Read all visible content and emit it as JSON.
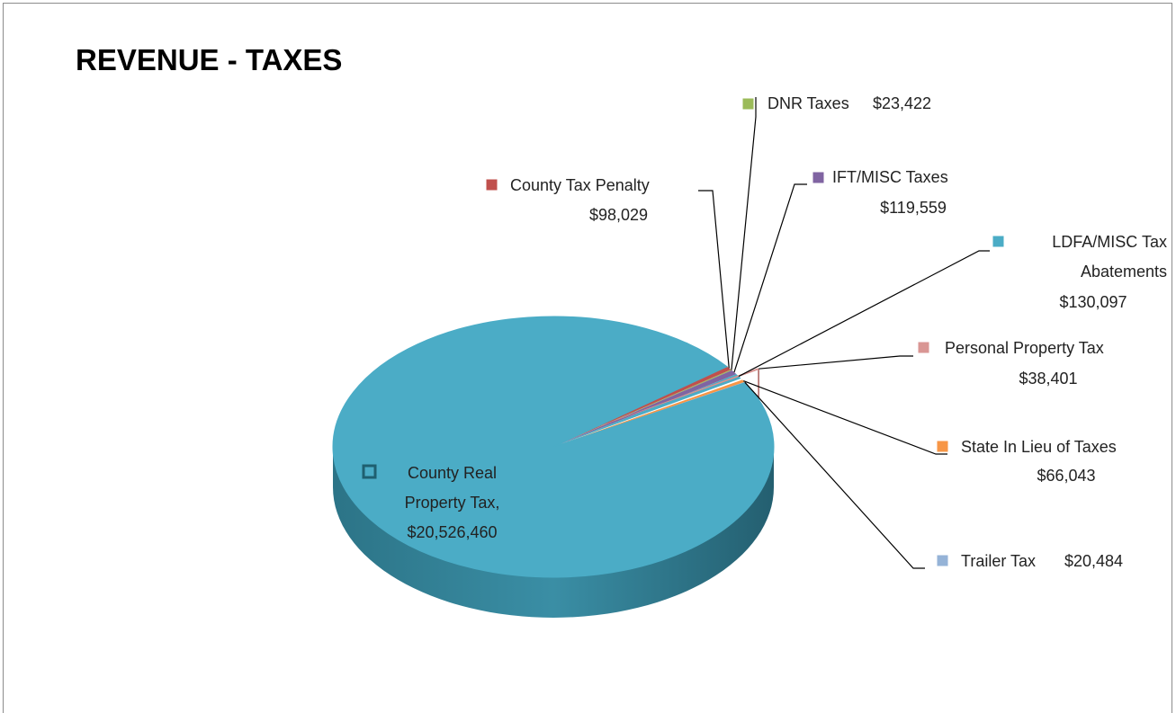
{
  "chart_data": {
    "type": "pie3d",
    "title": "REVENUE - TAXES",
    "categories": [
      "County Tax Penalty",
      "DNR Taxes",
      "IFT/MISC Taxes",
      "LDFA/MISC Tax Abatements",
      "Personal Property Tax",
      "State In Lieu of Taxes",
      "Trailer Tax",
      "County Real Property  Tax,"
    ],
    "values": [
      98029,
      23422,
      119559,
      130097,
      38401,
      66043,
      20484,
      20526460
    ],
    "value_labels": [
      "$98,029",
      "$23,422",
      "$119,559",
      "$130,097",
      "$38,401",
      "$66,043",
      "$20,484",
      "$20,526,460"
    ],
    "colors": [
      "#c0504d",
      "#9bbb59",
      "#8064a2",
      "#4bacc6",
      "#d99694",
      "#f79646",
      "#95b3d7",
      "#4bacc6"
    ]
  }
}
